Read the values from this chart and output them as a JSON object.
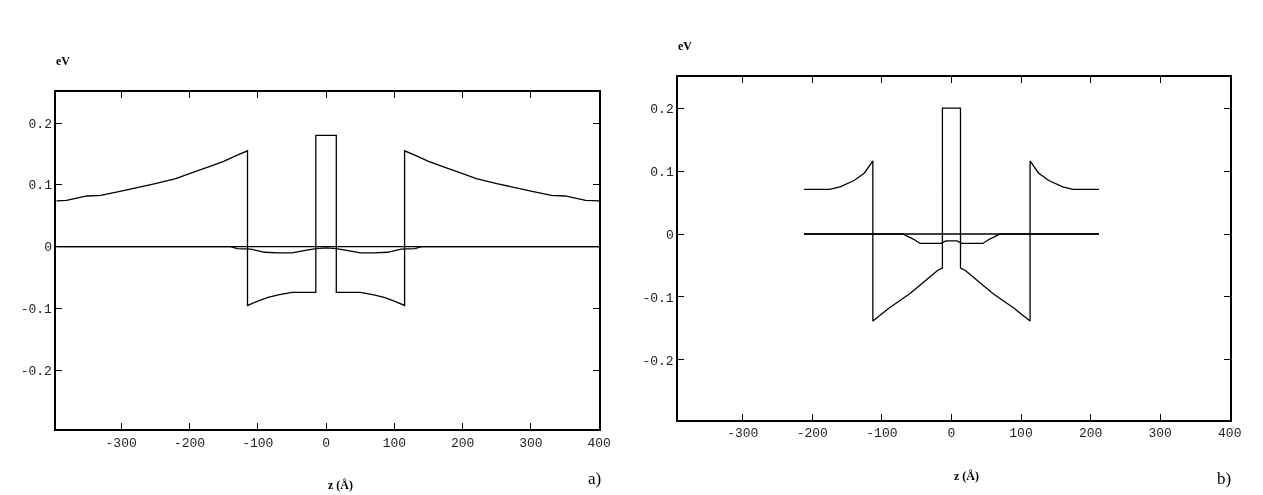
{
  "chart_data": [
    {
      "type": "line",
      "xlabel": "z (Å)",
      "ylabel": "eV",
      "annotations": [
        "a)"
      ],
      "xlim": [
        -395,
        400
      ],
      "ylim": [
        -0.295,
        0.25
      ],
      "xticks": [
        -300,
        -200,
        -100,
        0,
        100,
        200,
        300,
        400
      ],
      "yticks": [
        -0.2,
        -0.1,
        0,
        0.1,
        0.2
      ],
      "series": [
        {
          "color": "#000000",
          "x": [
            -395,
            -380,
            -350,
            -330,
            -300,
            -250,
            -220,
            -200,
            -170,
            -150,
            -130,
            -115,
            -115,
            -100,
            -85,
            -70,
            -50,
            -15,
            -15,
            15,
            15,
            50,
            70,
            85,
            100,
            115,
            115,
            130,
            150,
            170,
            200,
            220,
            250,
            300,
            330,
            350,
            380,
            400
          ],
          "values": [
            0.074,
            0.075,
            0.082,
            0.083,
            0.09,
            0.102,
            0.11,
            0.118,
            0.13,
            0.138,
            0.148,
            0.155,
            -0.095,
            -0.088,
            -0.082,
            -0.078,
            -0.074,
            -0.074,
            0.18,
            0.18,
            -0.074,
            -0.074,
            -0.078,
            -0.082,
            -0.088,
            -0.095,
            0.155,
            0.148,
            0.138,
            0.13,
            0.118,
            0.11,
            0.102,
            0.09,
            0.083,
            0.082,
            0.075,
            0.074
          ]
        },
        {
          "color": "#000000",
          "x": [
            -395,
            400
          ],
          "values": [
            0,
            0
          ]
        },
        {
          "color": "#000000",
          "x": [
            -395,
            -140,
            -130,
            -110,
            -90,
            -70,
            -50,
            -30,
            -15,
            0,
            15,
            30,
            50,
            70,
            90,
            110,
            130,
            140,
            400
          ],
          "values": [
            0,
            0,
            -0.003,
            -0.004,
            -0.009,
            -0.01,
            -0.01,
            -0.006,
            -0.003,
            -0.002,
            -0.003,
            -0.006,
            -0.01,
            -0.01,
            -0.009,
            -0.004,
            -0.003,
            0,
            0
          ]
        }
      ]
    },
    {
      "type": "line",
      "xlabel": "z (Å)",
      "ylabel": "eV",
      "annotations": [
        "b)"
      ],
      "xlim": [
        -393,
        400
      ],
      "ylim": [
        -0.295,
        0.249
      ],
      "xticks": [
        -300,
        -200,
        -100,
        0,
        100,
        200,
        300,
        400
      ],
      "yticks": [
        -0.2,
        -0.1,
        0,
        0.1,
        0.2
      ],
      "series": [
        {
          "color": "#000000",
          "x": [
            -212,
            -175,
            -160,
            -140,
            -125,
            -113,
            -113,
            -90,
            -60,
            -35,
            -20,
            -13,
            -13,
            13,
            13,
            20,
            35,
            60,
            90,
            113,
            113,
            125,
            140,
            160,
            175,
            212
          ],
          "values": [
            0.071,
            0.071,
            0.075,
            0.085,
            0.097,
            0.116,
            -0.138,
            -0.118,
            -0.095,
            -0.072,
            -0.058,
            -0.054,
            0.2,
            0.2,
            -0.054,
            -0.058,
            -0.072,
            -0.095,
            -0.118,
            -0.138,
            0.116,
            0.097,
            0.085,
            0.075,
            0.071,
            0.071
          ]
        },
        {
          "color": "#000000",
          "x": [
            -212,
            212
          ],
          "values": [
            0,
            0
          ]
        },
        {
          "color": "#000000",
          "x": [
            -212,
            -70,
            -55,
            -45,
            -15,
            -8,
            8,
            15,
            45,
            55,
            70,
            212
          ],
          "values": [
            0,
            0,
            -0.008,
            -0.015,
            -0.015,
            -0.011,
            -0.011,
            -0.015,
            -0.015,
            -0.008,
            0,
            0
          ]
        }
      ]
    }
  ]
}
